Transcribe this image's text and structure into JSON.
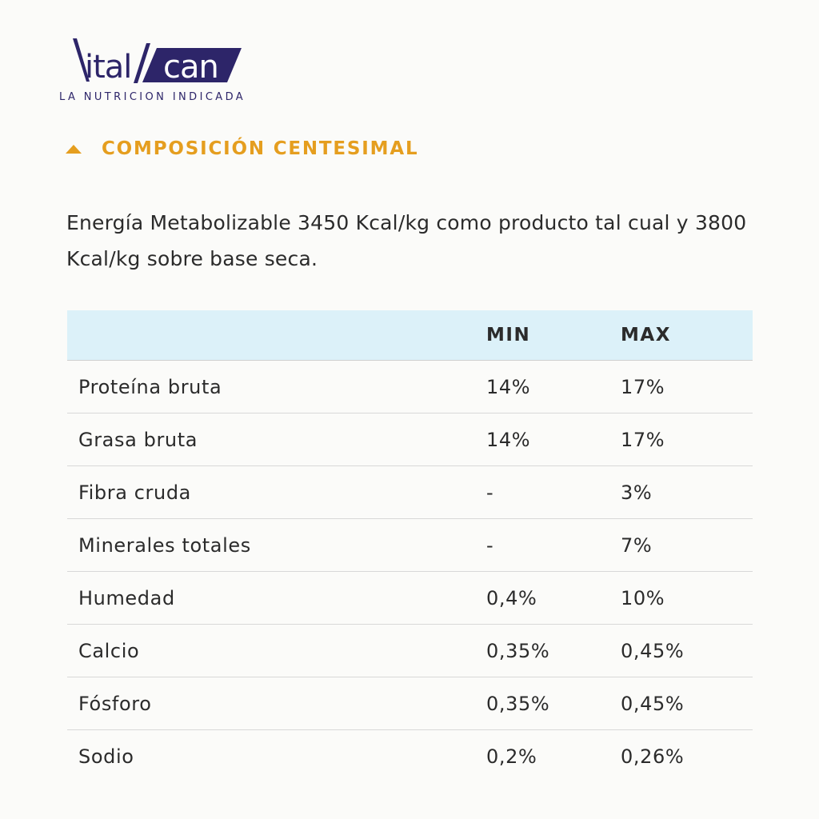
{
  "brand": {
    "logo_word_1": "ital",
    "logo_word_2": "can",
    "tagline": "LA NUTRICION INDICADA",
    "color_primary": "#2d2569",
    "color_accent": "#e59e1f"
  },
  "section": {
    "title": "COMPOSICIÓN CENTESIMAL",
    "toggle_icon": "caret-up-icon",
    "intro": "Energía Metabolizable 3450 Kcal/kg como producto tal cual y 3800 Kcal/kg sobre base seca."
  },
  "table": {
    "columns": [
      "",
      "MIN",
      "MAX"
    ],
    "rows": [
      {
        "name": "Proteína bruta",
        "min": "14%",
        "max": "17%"
      },
      {
        "name": "Grasa bruta",
        "min": "14%",
        "max": "17%"
      },
      {
        "name": "Fibra cruda",
        "min": "-",
        "max": "3%"
      },
      {
        "name": "Minerales totales",
        "min": "-",
        "max": "7%"
      },
      {
        "name": "Humedad",
        "min": "0,4%",
        "max": "10%"
      },
      {
        "name": "Calcio",
        "min": "0,35%",
        "max": "0,45%"
      },
      {
        "name": "Fósforo",
        "min": "0,35%",
        "max": "0,45%"
      },
      {
        "name": "Sodio",
        "min": "0,2%",
        "max": "0,26%"
      }
    ]
  }
}
